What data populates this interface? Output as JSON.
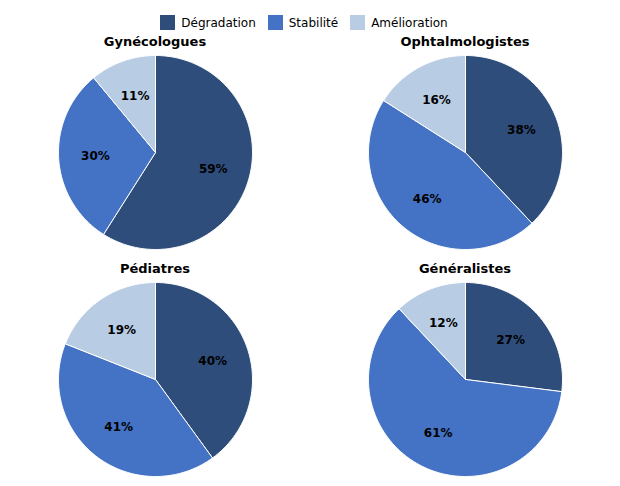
{
  "chart_data": [
    {
      "type": "pie",
      "title": "Gynécologues",
      "categories": [
        "Dégradation",
        "Stabilité",
        "Amélioration"
      ],
      "values": [
        59,
        30,
        11
      ],
      "value_labels": [
        "59%",
        "30%",
        "11%"
      ],
      "colors": [
        "#2E4D7B",
        "#4472C4",
        "#B8CCE4"
      ],
      "data_labels": true,
      "legend": "top"
    },
    {
      "type": "pie",
      "title": "Ophtalmologistes",
      "categories": [
        "Dégradation",
        "Stabilité",
        "Amélioration"
      ],
      "values": [
        38,
        46,
        16
      ],
      "value_labels": [
        "38%",
        "46%",
        "16%"
      ],
      "colors": [
        "#2E4D7B",
        "#4472C4",
        "#B8CCE4"
      ],
      "data_labels": true,
      "legend": "top"
    },
    {
      "type": "pie",
      "title": "Pédiatres",
      "categories": [
        "Dégradation",
        "Stabilité",
        "Amélioration"
      ],
      "values": [
        40,
        41,
        19
      ],
      "value_labels": [
        "40%",
        "41%",
        "19%"
      ],
      "colors": [
        "#2E4D7B",
        "#4472C4",
        "#B8CCE4"
      ],
      "data_labels": true,
      "legend": "top"
    },
    {
      "type": "pie",
      "title": "Généralistes",
      "categories": [
        "Dégradation",
        "Stabilité",
        "Amélioration"
      ],
      "values": [
        27,
        61,
        12
      ],
      "value_labels": [
        "27%",
        "61%",
        "12%"
      ],
      "colors": [
        "#2E4D7B",
        "#4472C4",
        "#B8CCE4"
      ],
      "data_labels": true,
      "legend": "top"
    }
  ]
}
